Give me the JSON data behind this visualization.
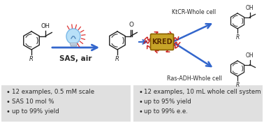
{
  "bg_color": "#ffffff",
  "panel_bg": "#e0e0e0",
  "bullet_left": [
    "12 examples, 0.5 mM scale",
    "SAS 10 mol %",
    "up to 99% yield"
  ],
  "bullet_right": [
    "12 examples, 10 mL whole cell system",
    "up to 95% yield",
    "up to 99% e.e."
  ],
  "arrow_color": "#3366cc",
  "kred_box_color": "#c8a428",
  "kred_box_edge": "#8b6000",
  "kred_text_color": "#5a2d00",
  "kred_tentacle_color": "#cc2222",
  "label_ktcr": "KtCR-Whole cell",
  "label_ras": "Ras-ADH-Whole cell",
  "label_sas": "SAS, air",
  "text_color": "#2a2a2a",
  "mol_color": "#222222",
  "bullet_fontsize": 6.2,
  "label_fontsize": 5.8,
  "sas_fontsize": 7.5
}
